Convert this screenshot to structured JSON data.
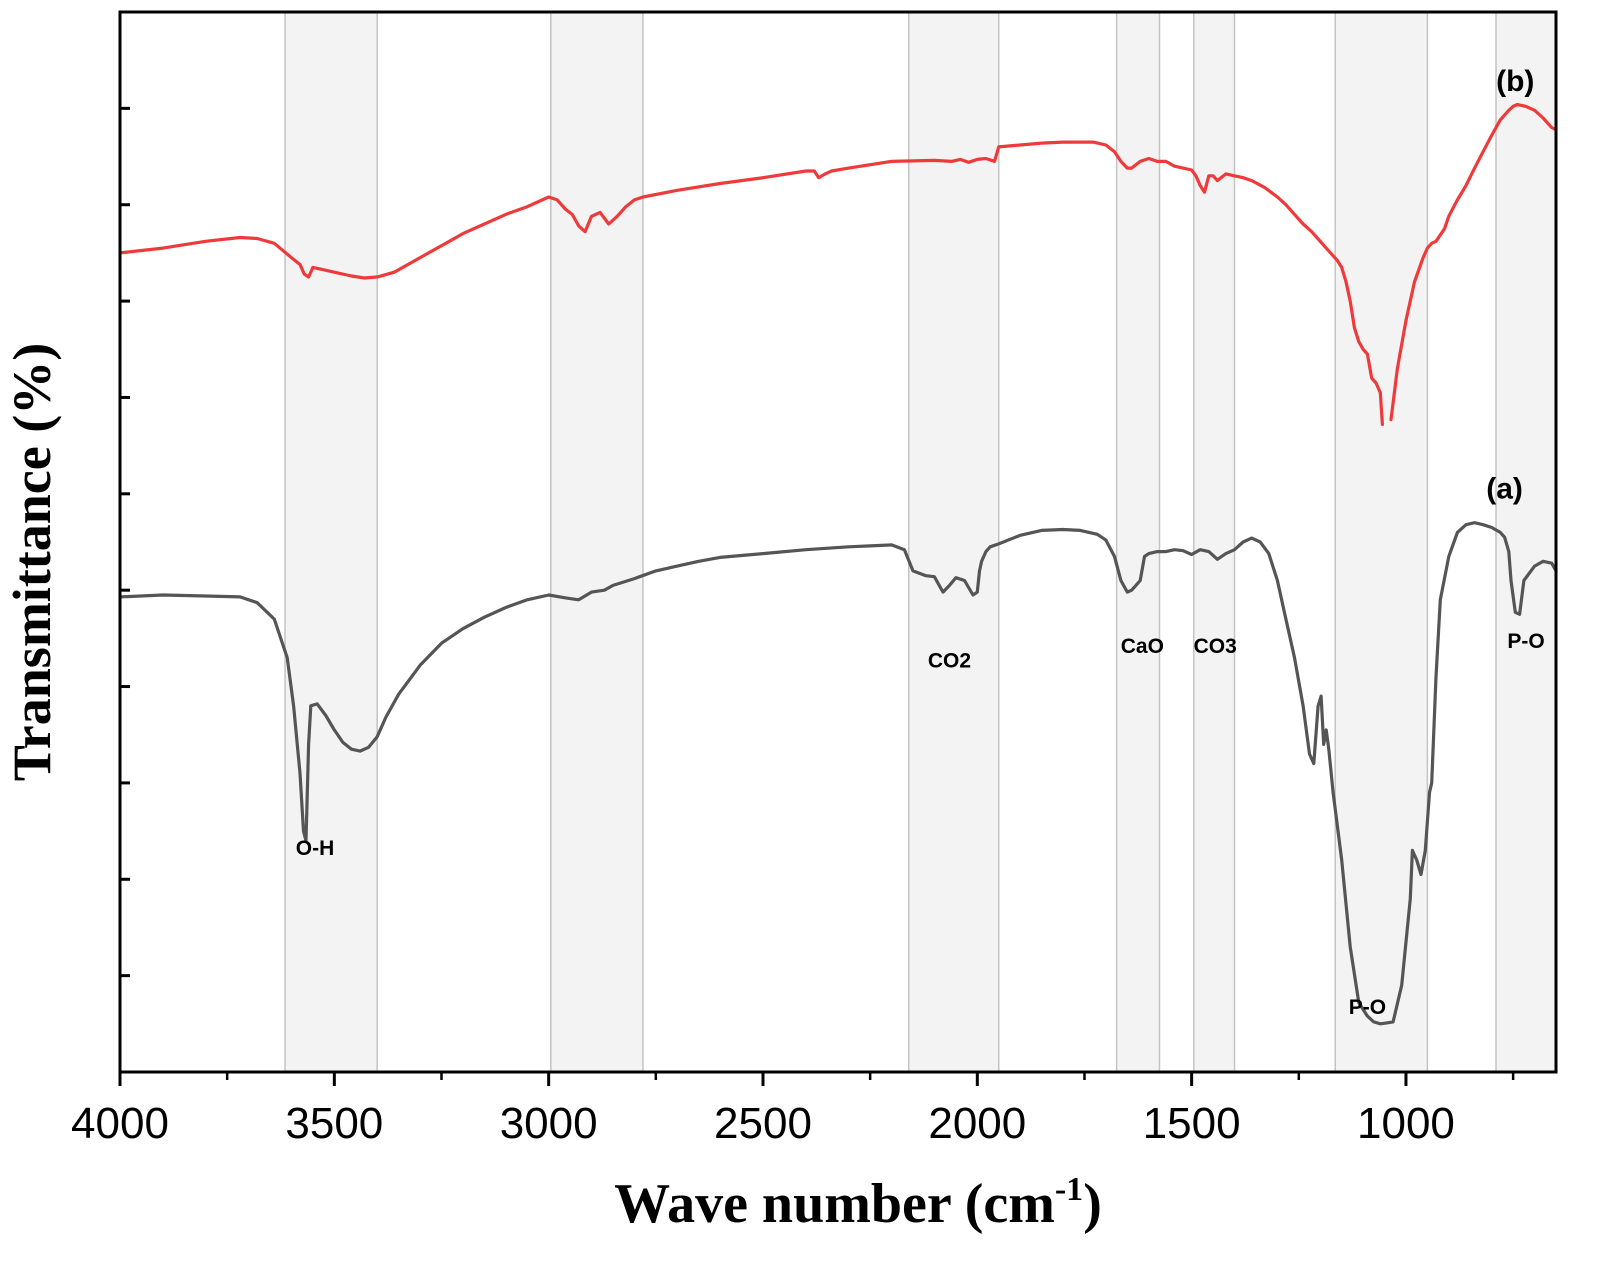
{
  "chart_data": {
    "type": "line",
    "title": "",
    "xlabel": "Wave number (cm",
    "xlabel_sup": "-1",
    "xlabel_tail": ")",
    "ylabel": "Transmittance (%)",
    "xlim": [
      4000,
      650
    ],
    "x_reversed": true,
    "ylim": [
      0,
      11
    ],
    "y_tick_values": [
      1,
      2,
      3,
      4,
      5,
      6,
      7,
      8,
      9,
      10
    ],
    "x_major_ticks": [
      4000,
      3500,
      3000,
      2500,
      2000,
      1500,
      1000
    ],
    "x_tick_labels": [
      "4000",
      "3500",
      "3000",
      "2500",
      "2000",
      "1500",
      "1000"
    ],
    "x_minor_ticks": [
      3750,
      3250,
      2750,
      2250,
      1750,
      1250,
      750
    ],
    "grid": false,
    "shaded_bands": [
      {
        "from": 3615,
        "to": 3400
      },
      {
        "from": 2995,
        "to": 2780
      },
      {
        "from": 2160,
        "to": 1950
      },
      {
        "from": 1675,
        "to": 1575
      },
      {
        "from": 1495,
        "to": 1400
      },
      {
        "from": 1165,
        "to": 950
      },
      {
        "from": 790,
        "to": 650
      }
    ],
    "annotations": [
      {
        "text": "O-H",
        "x": 3545,
        "y": 2.25
      },
      {
        "text": "CO2",
        "x": 2065,
        "y": 4.2
      },
      {
        "text": "CaO",
        "x": 1615,
        "y": 4.35
      },
      {
        "text": "CO3",
        "x": 1445,
        "y": 4.35
      },
      {
        "text": "P-O",
        "x": 1090,
        "y": 0.6
      },
      {
        "text": "P-O",
        "x": 720,
        "y": 4.4
      }
    ],
    "series": [
      {
        "name": "(a)",
        "color": "#555555",
        "label_x": 770,
        "label_y": 5.95,
        "x": [
          4000,
          3900,
          3800,
          3720,
          3680,
          3640,
          3610,
          3595,
          3580,
          3572,
          3566,
          3560,
          3555,
          3540,
          3520,
          3500,
          3480,
          3460,
          3440,
          3420,
          3400,
          3380,
          3350,
          3300,
          3250,
          3200,
          3150,
          3100,
          3050,
          3000,
          2960,
          2930,
          2900,
          2870,
          2850,
          2800,
          2750,
          2700,
          2650,
          2600,
          2500,
          2400,
          2300,
          2250,
          2200,
          2170,
          2150,
          2120,
          2100,
          2080,
          2065,
          2050,
          2030,
          2010,
          2000,
          1995,
          1990,
          1980,
          1970,
          1950,
          1900,
          1850,
          1800,
          1760,
          1720,
          1700,
          1680,
          1665,
          1650,
          1640,
          1630,
          1620,
          1610,
          1600,
          1580,
          1560,
          1540,
          1520,
          1500,
          1480,
          1460,
          1440,
          1420,
          1400,
          1380,
          1360,
          1340,
          1320,
          1300,
          1280,
          1260,
          1240,
          1225,
          1215,
          1205,
          1198,
          1192,
          1186,
          1180,
          1170,
          1150,
          1130,
          1110,
          1090,
          1075,
          1060,
          1045,
          1030,
          1010,
          990,
          985,
          975,
          965,
          955,
          950,
          945,
          940,
          930,
          920,
          900,
          880,
          860,
          840,
          820,
          800,
          780,
          770,
          760,
          755,
          745,
          735,
          725,
          700,
          680,
          660,
          650
        ],
        "y": [
          4.93,
          4.95,
          4.94,
          4.93,
          4.87,
          4.7,
          4.3,
          3.8,
          3.1,
          2.5,
          2.4,
          3.4,
          3.8,
          3.82,
          3.7,
          3.55,
          3.42,
          3.35,
          3.33,
          3.37,
          3.48,
          3.68,
          3.92,
          4.22,
          4.45,
          4.6,
          4.72,
          4.82,
          4.9,
          4.95,
          4.92,
          4.9,
          4.98,
          5.0,
          5.05,
          5.12,
          5.2,
          5.25,
          5.3,
          5.34,
          5.38,
          5.42,
          5.45,
          5.46,
          5.47,
          5.42,
          5.2,
          5.15,
          5.14,
          4.98,
          5.05,
          5.13,
          5.1,
          4.95,
          4.98,
          5.2,
          5.3,
          5.4,
          5.45,
          5.48,
          5.57,
          5.62,
          5.63,
          5.62,
          5.58,
          5.52,
          5.35,
          5.1,
          4.98,
          5.0,
          5.05,
          5.1,
          5.35,
          5.38,
          5.4,
          5.4,
          5.42,
          5.41,
          5.37,
          5.42,
          5.4,
          5.32,
          5.38,
          5.42,
          5.5,
          5.54,
          5.5,
          5.38,
          5.1,
          4.7,
          4.3,
          3.8,
          3.3,
          3.2,
          3.8,
          3.9,
          3.4,
          3.55,
          3.35,
          2.9,
          2.2,
          1.3,
          0.72,
          0.58,
          0.52,
          0.5,
          0.51,
          0.52,
          0.9,
          1.8,
          2.3,
          2.2,
          2.05,
          2.3,
          2.6,
          2.9,
          3.0,
          4.1,
          4.9,
          5.35,
          5.6,
          5.68,
          5.7,
          5.68,
          5.65,
          5.6,
          5.55,
          5.4,
          5.1,
          4.77,
          4.75,
          5.1,
          5.25,
          5.3,
          5.28,
          5.2
        ]
      },
      {
        "name": "(b)",
        "color": "#ee3a3a",
        "label_x": 745,
        "label_y": 10.18,
        "x": [
          4000,
          3900,
          3800,
          3720,
          3680,
          3640,
          3600,
          3580,
          3570,
          3560,
          3550,
          3530,
          3500,
          3460,
          3430,
          3400,
          3360,
          3320,
          3280,
          3240,
          3200,
          3150,
          3100,
          3050,
          3000,
          2980,
          2960,
          2945,
          2930,
          2915,
          2900,
          2880,
          2860,
          2840,
          2820,
          2800,
          2780,
          2700,
          2600,
          2500,
          2400,
          2380,
          2370,
          2355,
          2340,
          2300,
          2200,
          2100,
          2060,
          2040,
          2020,
          2000,
          1980,
          1960,
          1950,
          1900,
          1850,
          1800,
          1760,
          1730,
          1700,
          1680,
          1665,
          1650,
          1640,
          1620,
          1600,
          1580,
          1560,
          1540,
          1520,
          1500,
          1490,
          1480,
          1470,
          1460,
          1450,
          1440,
          1420,
          1400,
          1380,
          1360,
          1330,
          1300,
          1280,
          1260,
          1240,
          1220,
          1200,
          1180,
          1160,
          1150,
          1140,
          1130,
          1120,
          1110,
          1100,
          1090,
          1080,
          1070,
          1060,
          1055,
          1040,
          1035,
          1020,
          1000,
          980,
          960,
          950,
          940,
          930,
          910,
          900,
          880,
          860,
          840,
          820,
          800,
          780,
          760,
          750,
          740,
          720,
          700,
          680,
          660,
          650
        ],
        "y": [
          8.5,
          8.55,
          8.62,
          8.66,
          8.65,
          8.6,
          8.45,
          8.38,
          8.28,
          8.25,
          8.35,
          8.33,
          8.3,
          8.26,
          8.24,
          8.25,
          8.3,
          8.4,
          8.5,
          8.6,
          8.7,
          8.8,
          8.9,
          8.98,
          9.08,
          9.05,
          8.95,
          8.9,
          8.78,
          8.72,
          8.88,
          8.92,
          8.8,
          8.88,
          8.98,
          9.05,
          9.08,
          9.15,
          9.22,
          9.28,
          9.35,
          9.35,
          9.28,
          9.32,
          9.35,
          9.38,
          9.45,
          9.46,
          9.45,
          9.47,
          9.44,
          9.47,
          9.48,
          9.45,
          9.6,
          9.62,
          9.64,
          9.65,
          9.65,
          9.65,
          9.62,
          9.55,
          9.45,
          9.38,
          9.38,
          9.45,
          9.48,
          9.45,
          9.45,
          9.4,
          9.38,
          9.36,
          9.3,
          9.2,
          9.13,
          9.3,
          9.3,
          9.25,
          9.32,
          9.3,
          9.28,
          9.25,
          9.18,
          9.08,
          9.0,
          8.9,
          8.8,
          8.72,
          8.62,
          8.52,
          8.42,
          8.35,
          8.2,
          8.0,
          7.72,
          7.58,
          7.5,
          7.45,
          7.2,
          7.15,
          7.05,
          6.72,
          null,
          6.77,
          7.3,
          7.8,
          8.2,
          8.45,
          8.55,
          8.6,
          8.62,
          8.75,
          8.88,
          9.05,
          9.2,
          9.38,
          9.55,
          9.72,
          9.88,
          9.98,
          10.02,
          10.04,
          10.02,
          9.98,
          9.9,
          9.8,
          9.78
        ]
      }
    ]
  }
}
